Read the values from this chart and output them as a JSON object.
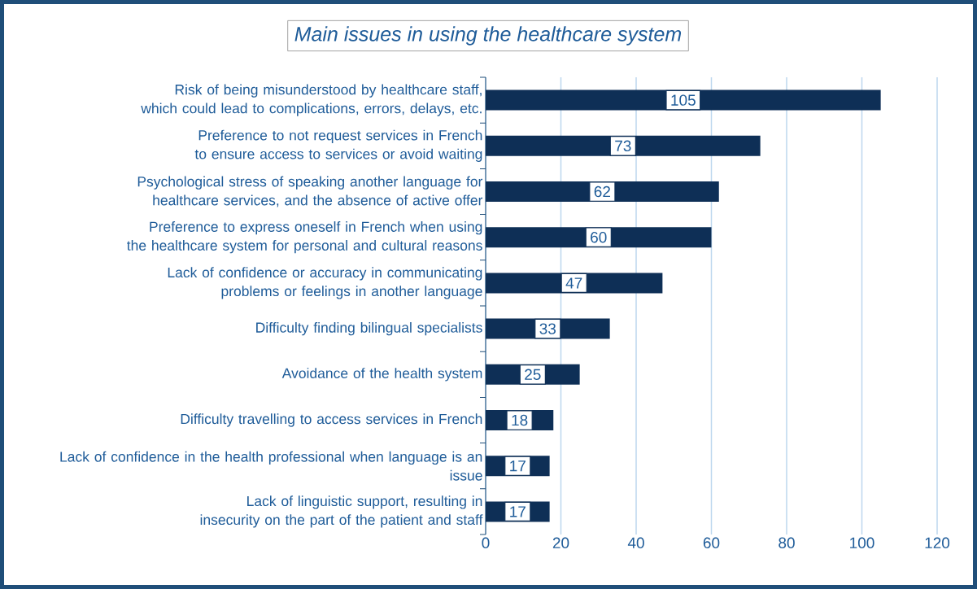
{
  "chart_data": {
    "type": "bar",
    "orientation": "horizontal",
    "title": "Main issues in using the healthcare system",
    "categories": [
      "Risk of being misunderstood by healthcare staff, which could lead to complications, errors, delays, etc.",
      "Preference to not request services in French to ensure access to services or avoid waiting",
      "Psychological stress of speaking another language for healthcare services, and the absence of active offer",
      "Preference to express oneself in French when using the healthcare system for personal and cultural reasons",
      "Lack of confidence or accuracy in communicating problems or feelings in another language",
      "Difficulty finding bilingual specialists",
      "Avoidance of the health system",
      "Difficulty travelling to access services in French",
      "Lack of confidence in the health professional when language is an issue",
      "Lack of linguistic support, resulting in insecurity on the part of the patient and staff"
    ],
    "values": [
      105,
      73,
      62,
      60,
      47,
      33,
      25,
      18,
      17,
      17
    ],
    "color": "#0e2f56",
    "xlim": [
      0,
      120
    ],
    "xticks": [
      0,
      20,
      40,
      60,
      80,
      100,
      120
    ],
    "grid": "x",
    "data_labels": true
  }
}
